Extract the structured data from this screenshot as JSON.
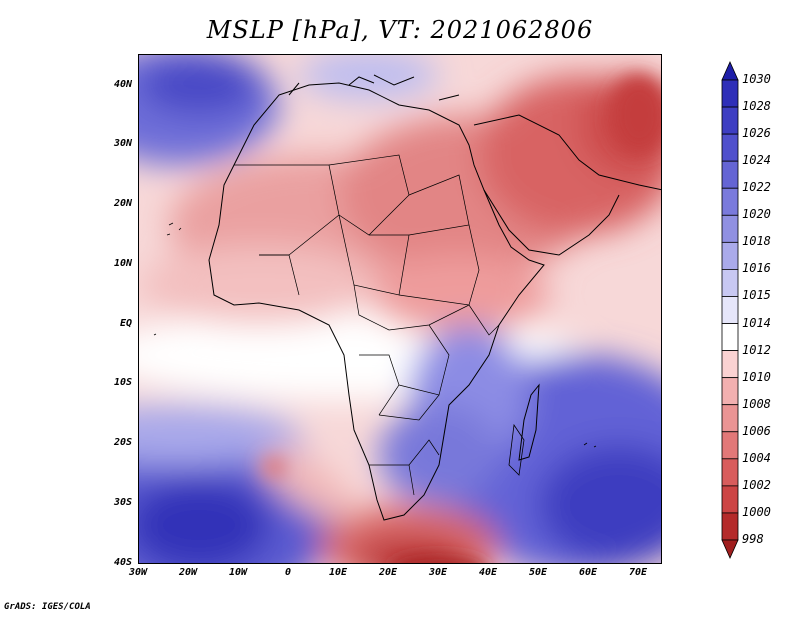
{
  "title": "MSLP [hPa], VT: 2021062806",
  "footer": "GrADS: IGES/COLA",
  "map": {
    "region": "Africa and surrounding oceans",
    "variable": "Mean sea level pressure",
    "units": "hPa",
    "valid_time": "2021062806",
    "lon_ticks": [
      "30W",
      "20W",
      "10W",
      "0",
      "10E",
      "20E",
      "30E",
      "40E",
      "50E",
      "60E",
      "70E"
    ],
    "lat_ticks": [
      "40N",
      "30N",
      "20N",
      "10N",
      "EQ",
      "10S",
      "20S",
      "30S",
      "40S"
    ]
  },
  "colorbar": {
    "levels": [
      "1030",
      "1028",
      "1026",
      "1024",
      "1022",
      "1020",
      "1018",
      "1016",
      "1015",
      "1014",
      "1012",
      "1010",
      "1008",
      "1006",
      "1004",
      "1002",
      "1000",
      "998"
    ],
    "colors": [
      "#1e1ea8",
      "#2e2eb8",
      "#3e3ec2",
      "#5050cc",
      "#6464d4",
      "#7a7adc",
      "#9090e2",
      "#aaaaea",
      "#c8c8f2",
      "#e6e6fa",
      "#ffffff",
      "#fad2d2",
      "#f2b0b0",
      "#ea9494",
      "#e27878",
      "#d85c5c",
      "#cc4444",
      "#b42a2a",
      "#a01e1e"
    ]
  }
}
